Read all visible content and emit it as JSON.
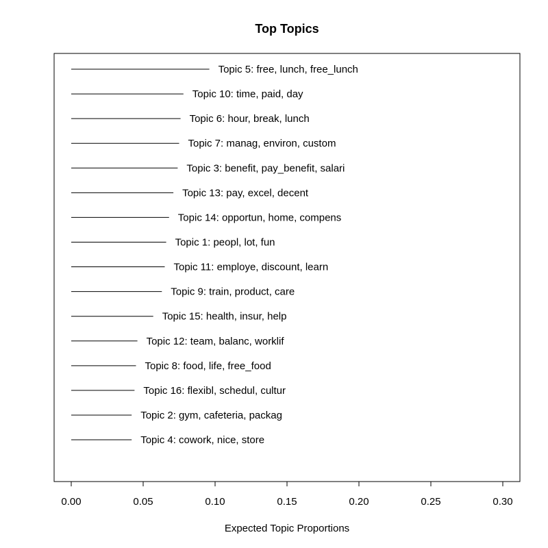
{
  "chart_data": {
    "type": "bar",
    "title": "Top Topics",
    "xlabel": "Expected Topic Proportions",
    "ylabel": "",
    "xlim": [
      -0.0115,
      0.3115
    ],
    "x_ticks": [
      0.0,
      0.05,
      0.1,
      0.15,
      0.2,
      0.25,
      0.3
    ],
    "x_tick_labels": [
      "0.00",
      "0.05",
      "0.10",
      "0.15",
      "0.20",
      "0.25",
      "0.30"
    ],
    "grid": false,
    "orientation": "horizontal",
    "categories": [
      "Topic 5: free, lunch, free_lunch",
      "Topic 10: time, paid, day",
      "Topic 6: hour, break, lunch",
      "Topic 7: manag, environ, custom",
      "Topic 3: benefit, pay_benefit, salari",
      "Topic 13: pay, excel, decent",
      "Topic 14: opportun, home, compens",
      "Topic 1: peopl, lot, fun",
      "Topic 11: employe, discount, learn",
      "Topic 9: train, product, care",
      "Topic 15: health, insur, help",
      "Topic 12: team, balanc, worklif",
      "Topic 8: food, life, free_food",
      "Topic 16: flexibl, schedul, cultur",
      "Topic 2: gym, cafeteria, packag",
      "Topic 4: cowork, nice, store"
    ],
    "values": [
      0.096,
      0.078,
      0.076,
      0.075,
      0.074,
      0.071,
      0.068,
      0.066,
      0.065,
      0.063,
      0.057,
      0.046,
      0.045,
      0.044,
      0.042,
      0.042
    ]
  }
}
